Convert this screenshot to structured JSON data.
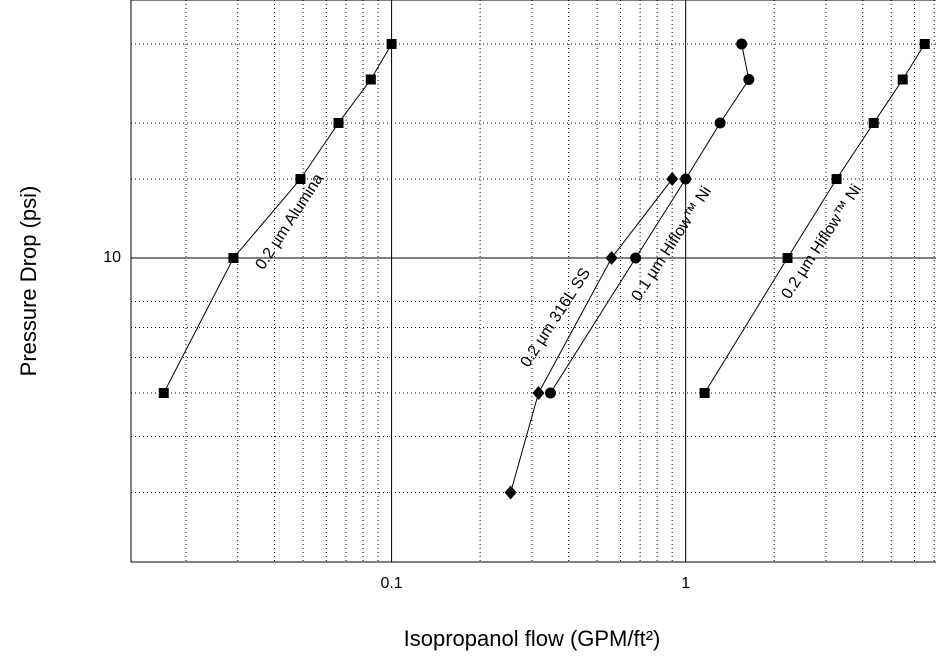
{
  "chart_data": {
    "type": "line",
    "xlabel": "Isopropanol flow (GPM/ft²)",
    "ylabel": "Pressure Drop (psi)",
    "xscale": "log",
    "yscale": "log",
    "xlim": [
      0.013,
      7.1
    ],
    "ylim": [
      2.1,
      37.6
    ],
    "xticks": [
      0.1,
      1
    ],
    "yticks": [
      10
    ],
    "xminor": [
      0.02,
      0.03,
      0.04,
      0.05,
      0.06,
      0.07,
      0.08,
      0.09,
      0.2,
      0.3,
      0.4,
      0.5,
      0.6,
      0.7,
      0.8,
      0.9,
      2,
      3,
      4,
      5,
      6,
      7
    ],
    "yminor": [
      3,
      4,
      5,
      6,
      7,
      8,
      15,
      20,
      30
    ],
    "grid": true,
    "series": [
      {
        "name": "0.2 µm Alumina",
        "color": "#000000",
        "marker": "square",
        "x": [
          0.0168,
          0.029,
          0.049,
          0.066,
          0.085,
          0.1
        ],
        "values": [
          5,
          10,
          15,
          20,
          25,
          30
        ]
      },
      {
        "name": "0.2 µm 316L SS",
        "color": "#000000",
        "marker": "diamond",
        "x": [
          0.254,
          0.316,
          0.56,
          0.9
        ],
        "values": [
          3,
          5,
          10,
          15
        ]
      },
      {
        "name": "0.1 µm Hiflow™ Ni",
        "color": "#000000",
        "marker": "circle",
        "x": [
          0.347,
          0.676,
          1.0,
          1.31,
          1.64,
          1.55
        ],
        "values": [
          5,
          10,
          15,
          20,
          25,
          30
        ]
      },
      {
        "name": "0.2 µm Hiflow™ Ni",
        "color": "#000000",
        "marker": "square",
        "x": [
          1.16,
          2.22,
          3.26,
          4.36,
          5.47,
          6.5
        ],
        "values": [
          5,
          10,
          15,
          20,
          25,
          30
        ]
      }
    ]
  }
}
